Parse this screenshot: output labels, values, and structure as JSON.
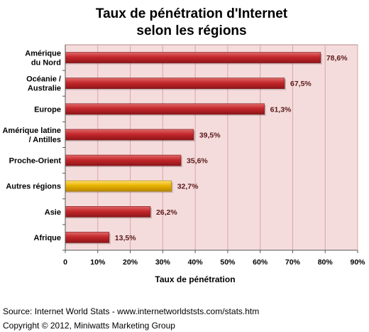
{
  "chart_data": {
    "type": "bar",
    "orientation": "horizontal",
    "title_lines": [
      "Taux de pénétration d'Internet",
      "selon les régions"
    ],
    "xlabel": "Taux de pénétration",
    "ylabel": "",
    "xlim": [
      0,
      90
    ],
    "x_ticks": [
      "0",
      "10%",
      "20%",
      "30%",
      "40%",
      "50%",
      "60%",
      "70%",
      "80%",
      "90%"
    ],
    "categories": [
      [
        "Amérique",
        "du Nord"
      ],
      [
        "Océanie /",
        "Australie"
      ],
      [
        "Europe"
      ],
      [
        "Amérique latine",
        "/ Antilles"
      ],
      [
        "Proche-Orient"
      ],
      [
        "Autres régions"
      ],
      [
        "Asie"
      ],
      [
        "Afrique"
      ]
    ],
    "values": [
      78.6,
      67.5,
      61.3,
      39.5,
      35.6,
      32.7,
      26.2,
      13.5
    ],
    "value_labels": [
      "78,6%",
      "67,5%",
      "61,3%",
      "39,5%",
      "35,6%",
      "32,7%",
      "26,2%",
      "13,5%"
    ],
    "highlighted_category": [
      "Autres régions"
    ],
    "grid": true,
    "legend": "none"
  },
  "colors": {
    "bar": "#b8262a",
    "bar_highlight": "#e8b400",
    "plot_background": "#f5dcdc",
    "gridline": "#d9a6a6"
  },
  "footer": {
    "source": "Source: Internet World Stats - www.internetworldststs.com/stats.htm",
    "copyright": "Copyright © 2012, Miniwatts Marketing Group"
  }
}
